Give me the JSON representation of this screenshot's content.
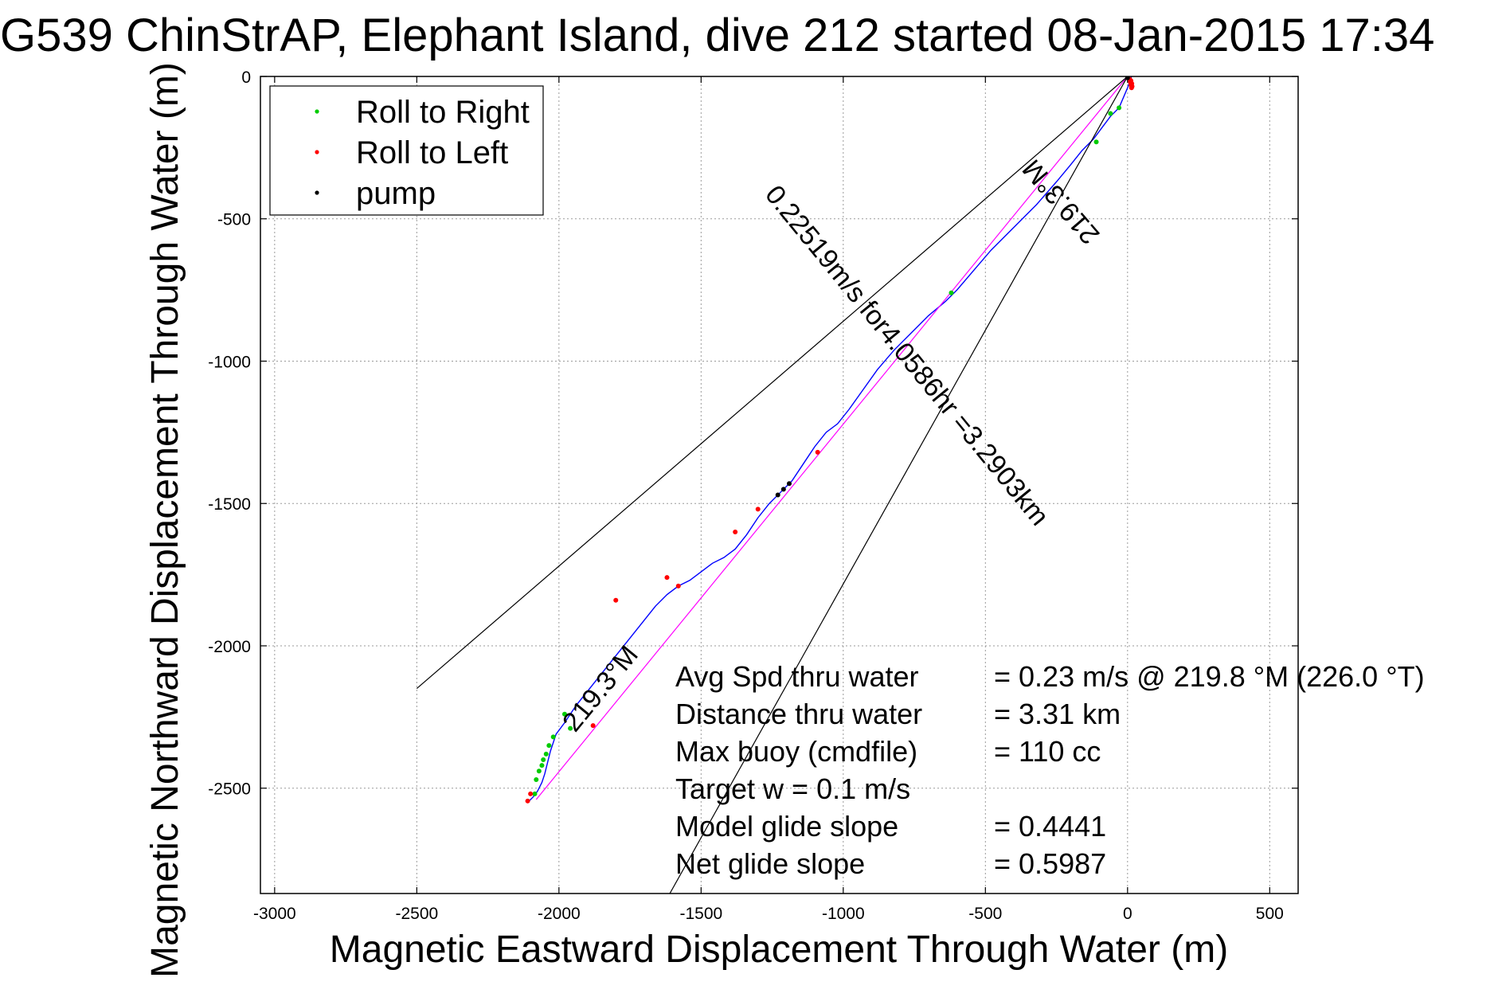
{
  "chart_data": {
    "type": "line",
    "title": "G539 ChinStrAP, Elephant Island, dive 212 started 08-Jan-2015 17:34",
    "xlabel": "Magnetic Eastward Displacement Through Water (m)",
    "ylabel": "Magnetic Northward Displacement Through Water (m)",
    "xlim": [
      -3050,
      600
    ],
    "ylim": [
      -2870,
      0
    ],
    "xticks": [
      -3000,
      -2500,
      -2000,
      -1500,
      -1000,
      -500,
      0,
      500
    ],
    "yticks": [
      0,
      -500,
      -1000,
      -1500,
      -2000,
      -2500
    ],
    "grid": true,
    "legend": {
      "location": "top-left",
      "entries": [
        {
          "label": "Roll to Right",
          "color": "#00cc00"
        },
        {
          "label": "Roll to Left",
          "color": "#ff0000"
        },
        {
          "label": "pump",
          "color": "#000000"
        }
      ]
    },
    "series": [
      {
        "name": "track",
        "color": "#0000ff",
        "x": [
          14,
          0,
          -30,
          -60,
          -90,
          -120,
          -160,
          -200,
          -250,
          -320,
          -400,
          -480,
          -540,
          -600,
          -640,
          -700,
          -760,
          -820,
          -880,
          -930,
          -980,
          -1020,
          -1060,
          -1100,
          -1140,
          -1180,
          -1220,
          -1260,
          -1300,
          -1340,
          -1380,
          -1420,
          -1460,
          -1500,
          -1540,
          -1580,
          -1620,
          -1660,
          -1700,
          -1740,
          -1780,
          -1820,
          -1860,
          -1900,
          -1940,
          -1980,
          -2010,
          -2030,
          -2050,
          -2060,
          -2075,
          -2090,
          -2110
        ],
        "y": [
          0,
          -40,
          -110,
          -140,
          -180,
          -220,
          -260,
          -310,
          -370,
          -450,
          -530,
          -610,
          -680,
          -750,
          -790,
          -840,
          -900,
          -960,
          -1030,
          -1100,
          -1170,
          -1220,
          -1250,
          -1300,
          -1360,
          -1420,
          -1460,
          -1500,
          -1550,
          -1610,
          -1660,
          -1690,
          -1710,
          -1740,
          -1770,
          -1790,
          -1820,
          -1860,
          -1910,
          -1960,
          -2010,
          -2060,
          -2110,
          -2160,
          -2210,
          -2270,
          -2310,
          -2370,
          -2450,
          -2480,
          -2510,
          -2530,
          -2550
        ]
      },
      {
        "name": "heading-line",
        "color": "#ff00ff",
        "x": [
          0,
          -2080
        ],
        "y": [
          0,
          -2540
        ]
      },
      {
        "name": "cone-upper",
        "color": "#000000",
        "x": [
          0,
          -2500
        ],
        "y": [
          0,
          -2150
        ]
      },
      {
        "name": "cone-lower",
        "color": "#000000",
        "x": [
          0,
          -1610
        ],
        "y": [
          0,
          -2870
        ]
      }
    ],
    "markers": {
      "roll_right": {
        "color": "#00cc00",
        "x": [
          -30,
          -60,
          -110,
          -620,
          -1980,
          -1960,
          -2020,
          -2035,
          -2045,
          -2055,
          -2060,
          -2070,
          -2080,
          -2085
        ],
        "y": [
          -110,
          -130,
          -230,
          -760,
          -2240,
          -2290,
          -2320,
          -2350,
          -2380,
          -2400,
          -2420,
          -2440,
          -2470,
          -2520
        ]
      },
      "roll_left": {
        "color": "#ff0000",
        "x": [
          8,
          10,
          12,
          14,
          16,
          15,
          12,
          -1090,
          -1300,
          -1380,
          -1580,
          -1620,
          -1800,
          -1880,
          -2100,
          -2110
        ],
        "y": [
          -10,
          -20,
          -30,
          -40,
          -35,
          -25,
          -15,
          -1320,
          -1520,
          -1600,
          -1790,
          -1760,
          -1840,
          -2280,
          -2520,
          -2545
        ]
      },
      "pump": {
        "color": "#000000",
        "x": [
          0,
          -1210,
          -1190,
          -1230
        ],
        "y": [
          -5,
          -1450,
          -1430,
          -1470
        ]
      }
    },
    "annotations": [
      {
        "text": "219.3°M",
        "x": -210,
        "y": -420,
        "angle": 229.3
      },
      {
        "text": "0.22519m/s for4.0586hr =3.2903km",
        "x": -800,
        "y": -1000,
        "angle": 50.7
      },
      {
        "text": "219.3°M",
        "x": -1830,
        "y": -2170,
        "angle": -50.7
      }
    ],
    "stats": [
      {
        "label": "Avg Spd thru water",
        "value": "=  0.23 m/s @ 219.8 °M (226.0 °T)"
      },
      {
        "label": "Distance thru water",
        "value": "=  3.31 km"
      },
      {
        "label": "Max buoy (cmdfile)",
        "value": "= 110 cc"
      },
      {
        "label": "Target w    = 0.1 m/s",
        "value": ""
      },
      {
        "label": "Model glide slope",
        "value": "= 0.4441"
      },
      {
        "label": "Net glide slope",
        "value": "= 0.5987"
      }
    ]
  }
}
